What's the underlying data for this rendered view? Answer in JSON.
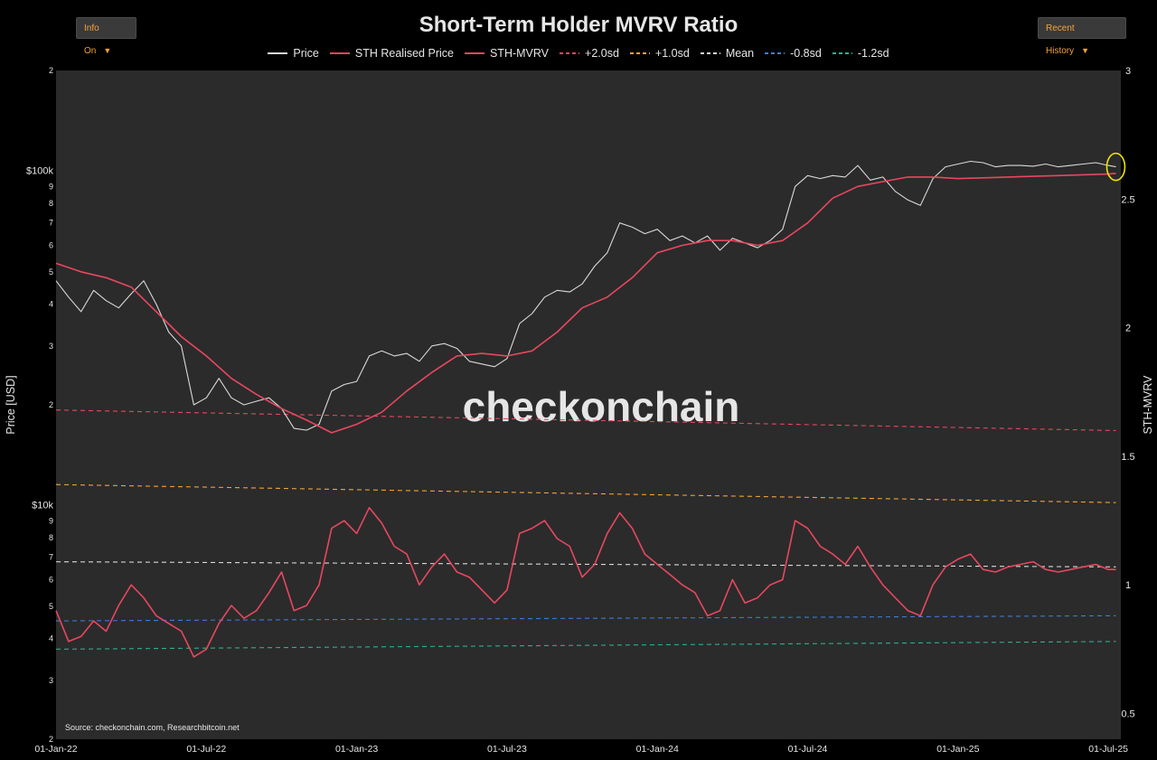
{
  "buttons": {
    "info": "Info On",
    "history": "Recent History",
    "arrow": "▼"
  },
  "chart_data": {
    "type": "line",
    "title": "Short-Term Holder MVRV Ratio",
    "ylabel_left": "Price [USD]",
    "ylabel_right": "STH-MVRV",
    "watermark": "checkonchain",
    "source": "Source: checkonchain.com, Researchbitcoin.net",
    "x_ticks": [
      "01-Jan-22",
      "01-Jul-22",
      "01-Jan-23",
      "01-Jul-23",
      "01-Jan-24",
      "01-Jul-24",
      "01-Jan-25",
      "01-Jul-25"
    ],
    "x_range": [
      0,
      42.5
    ],
    "y_left_log_range": [
      2000,
      200000
    ],
    "y_left_ticks": [
      {
        "v": 2000,
        "t": "2"
      },
      {
        "v": 3000,
        "t": "3"
      },
      {
        "v": 4000,
        "t": "4"
      },
      {
        "v": 5000,
        "t": "5"
      },
      {
        "v": 6000,
        "t": "6"
      },
      {
        "v": 7000,
        "t": "7"
      },
      {
        "v": 8000,
        "t": "8"
      },
      {
        "v": 9000,
        "t": "9"
      },
      {
        "v": 10000,
        "t": "$10k"
      },
      {
        "v": 20000,
        "t": "2"
      },
      {
        "v": 30000,
        "t": "3"
      },
      {
        "v": 40000,
        "t": "4"
      },
      {
        "v": 50000,
        "t": "5"
      },
      {
        "v": 60000,
        "t": "6"
      },
      {
        "v": 70000,
        "t": "7"
      },
      {
        "v": 80000,
        "t": "8"
      },
      {
        "v": 90000,
        "t": "9"
      },
      {
        "v": 100000,
        "t": "$100k"
      },
      {
        "v": 200000,
        "t": "2"
      }
    ],
    "y_right_range": [
      0.4,
      3.0
    ],
    "y_right_ticks": [
      {
        "v": 0.5,
        "t": "0.5"
      },
      {
        "v": 1,
        "t": "1"
      },
      {
        "v": 1.5,
        "t": "1.5"
      },
      {
        "v": 2,
        "t": "2"
      },
      {
        "v": 2.5,
        "t": "2.5"
      },
      {
        "v": 3,
        "t": "3"
      }
    ],
    "legend": [
      {
        "name": "Price",
        "color": "#d9d9d9",
        "dash": "none"
      },
      {
        "name": "STH Realised Price",
        "color": "#e8475f",
        "dash": "none"
      },
      {
        "name": "STH-MVRV",
        "color": "#e8475f",
        "dash": "none"
      },
      {
        "name": "+2.0sd",
        "color": "#e8475f",
        "dash": "4,3"
      },
      {
        "name": "+1.0sd",
        "color": "#f2a33a",
        "dash": "4,3"
      },
      {
        "name": "Mean",
        "color": "#d9d9d9",
        "dash": "4,3"
      },
      {
        "name": "-0.8sd",
        "color": "#3d7bd9",
        "dash": "4,3"
      },
      {
        "name": "-1.2sd",
        "color": "#2fae8f",
        "dash": "4,3"
      }
    ],
    "series": [
      {
        "name": "Price",
        "axis": "left",
        "color": "#d9d9d9",
        "x": [
          0,
          0.5,
          1,
          1.5,
          2,
          2.5,
          3,
          3.5,
          4,
          4.5,
          5,
          5.5,
          6,
          6.5,
          7,
          7.5,
          8,
          8.5,
          9,
          9.5,
          10,
          10.5,
          11,
          11.5,
          12,
          12.5,
          13,
          13.5,
          14,
          14.5,
          15,
          15.5,
          16,
          16.5,
          17,
          17.5,
          18,
          18.5,
          19,
          19.5,
          20,
          20.5,
          21,
          21.5,
          22,
          22.5,
          23,
          23.5,
          24,
          24.5,
          25,
          25.5,
          26,
          26.5,
          27,
          27.5,
          28,
          28.5,
          29,
          29.5,
          30,
          30.5,
          31,
          31.5,
          32,
          32.5,
          33,
          33.5,
          34,
          34.5,
          35,
          35.5,
          36,
          36.5,
          37,
          37.5,
          38,
          38.5,
          39,
          39.5,
          40,
          40.5,
          41,
          41.5,
          42,
          42.3
        ],
        "values": [
          47000,
          42000,
          38000,
          44000,
          41000,
          39000,
          43000,
          47000,
          40000,
          33000,
          30000,
          20000,
          21000,
          24000,
          21000,
          20000,
          20500,
          21000,
          19500,
          17000,
          16800,
          17500,
          22000,
          23000,
          23500,
          28000,
          29000,
          28000,
          28500,
          27000,
          30000,
          30500,
          29500,
          27000,
          26500,
          26000,
          27500,
          35000,
          37500,
          42000,
          44000,
          43500,
          46000,
          52000,
          57000,
          70000,
          68000,
          65000,
          67000,
          62000,
          64000,
          61000,
          64000,
          58000,
          63000,
          61000,
          59000,
          62000,
          67000,
          90000,
          97000,
          95000,
          97000,
          96000,
          104000,
          94000,
          96000,
          87000,
          82000,
          79000,
          95000,
          103000,
          105000,
          107000,
          106000,
          103000,
          104000,
          104000,
          103500,
          105000,
          103000,
          104000,
          105000,
          106000,
          104000,
          103000
        ]
      },
      {
        "name": "STH Realised Price",
        "axis": "left",
        "color": "#e8475f",
        "x": [
          0,
          1,
          2,
          3,
          4,
          5,
          6,
          7,
          8,
          9,
          10,
          11,
          12,
          13,
          14,
          15,
          16,
          17,
          18,
          19,
          20,
          21,
          22,
          23,
          24,
          25,
          26,
          27,
          28,
          29,
          30,
          31,
          32,
          33,
          34,
          35,
          36,
          37,
          38,
          39,
          40,
          41,
          42,
          42.3
        ],
        "values": [
          53000,
          50000,
          48000,
          45000,
          38000,
          32000,
          28000,
          24000,
          21500,
          19500,
          18000,
          16500,
          17500,
          19000,
          22000,
          25000,
          28000,
          28500,
          28000,
          29000,
          33000,
          39000,
          42000,
          48000,
          57000,
          60000,
          62000,
          62000,
          60000,
          62000,
          70000,
          83000,
          90000,
          93000,
          96000,
          96000,
          95000,
          95500,
          96000,
          96500,
          97000,
          97500,
          98000,
          98500
        ]
      },
      {
        "name": "STH-MVRV",
        "axis": "right",
        "color": "#e8475f",
        "x": [
          0,
          0.5,
          1,
          1.5,
          2,
          2.5,
          3,
          3.5,
          4,
          4.5,
          5,
          5.5,
          6,
          6.5,
          7,
          7.5,
          8,
          8.5,
          9,
          9.5,
          10,
          10.5,
          11,
          11.5,
          12,
          12.5,
          13,
          13.5,
          14,
          14.5,
          15,
          15.5,
          16,
          16.5,
          17,
          17.5,
          18,
          18.5,
          19,
          19.5,
          20,
          20.5,
          21,
          21.5,
          22,
          22.5,
          23,
          23.5,
          24,
          24.5,
          25,
          25.5,
          26,
          26.5,
          27,
          27.5,
          28,
          28.5,
          29,
          29.5,
          30,
          30.5,
          31,
          31.5,
          32,
          32.5,
          33,
          33.5,
          34,
          34.5,
          35,
          35.5,
          36,
          36.5,
          37,
          37.5,
          38,
          38.5,
          39,
          39.5,
          40,
          40.5,
          41,
          41.5,
          42,
          42.3
        ],
        "values": [
          0.9,
          0.78,
          0.8,
          0.86,
          0.82,
          0.92,
          1.0,
          0.95,
          0.88,
          0.85,
          0.82,
          0.72,
          0.75,
          0.85,
          0.92,
          0.87,
          0.9,
          0.97,
          1.05,
          0.9,
          0.92,
          1.0,
          1.22,
          1.25,
          1.2,
          1.3,
          1.24,
          1.15,
          1.12,
          1.0,
          1.07,
          1.12,
          1.05,
          1.03,
          0.98,
          0.93,
          0.98,
          1.2,
          1.22,
          1.25,
          1.18,
          1.15,
          1.03,
          1.08,
          1.2,
          1.28,
          1.22,
          1.12,
          1.08,
          1.04,
          1.0,
          0.97,
          0.88,
          0.9,
          1.02,
          0.93,
          0.95,
          1.0,
          1.02,
          1.25,
          1.22,
          1.15,
          1.12,
          1.08,
          1.15,
          1.07,
          1.0,
          0.95,
          0.9,
          0.88,
          1.0,
          1.07,
          1.1,
          1.12,
          1.06,
          1.05,
          1.07,
          1.08,
          1.09,
          1.06,
          1.05,
          1.06,
          1.07,
          1.08,
          1.06,
          1.06
        ]
      }
    ],
    "bands": [
      {
        "name": "+2.0sd",
        "axis": "right",
        "color": "#e8475f",
        "from": 1.68,
        "to": 1.6
      },
      {
        "name": "+1.0sd",
        "axis": "right",
        "color": "#f2a33a",
        "from": 1.39,
        "to": 1.32
      },
      {
        "name": "Mean",
        "axis": "right",
        "color": "#d9d9d9",
        "from": 1.09,
        "to": 1.07
      },
      {
        "name": "-0.8sd",
        "axis": "right",
        "color": "#3d7bd9",
        "from": 0.86,
        "to": 0.88
      },
      {
        "name": "-1.2sd",
        "axis": "right",
        "color": "#2fae8f",
        "from": 0.75,
        "to": 0.78
      }
    ]
  }
}
